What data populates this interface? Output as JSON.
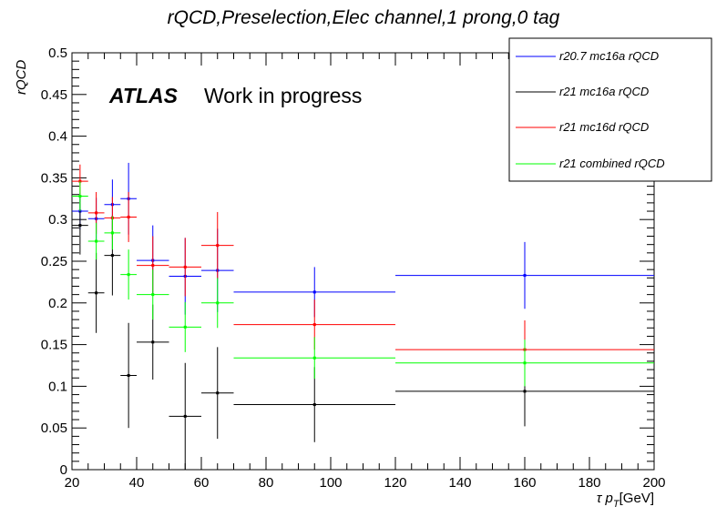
{
  "chart_data": {
    "type": "scatter",
    "title": "rQCD,Preselection,Elec channel,1 prong,0 tag",
    "xlabel": "τ p_T[GeV]",
    "ylabel": "rQCD",
    "xlim": [
      20,
      200
    ],
    "ylim": [
      0,
      0.5
    ],
    "x_ticks": [
      20,
      40,
      60,
      80,
      100,
      120,
      140,
      160,
      180,
      200
    ],
    "y_ticks": [
      0,
      0.05,
      0.1,
      0.15,
      0.2,
      0.25,
      0.3,
      0.35,
      0.4,
      0.45,
      0.5
    ],
    "x_tick_labels": [
      "20",
      "40",
      "60",
      "80",
      "100",
      "120",
      "140",
      "160",
      "180",
      "200"
    ],
    "y_tick_labels": [
      "0",
      "0.05",
      "0.1",
      "0.15",
      "0.2",
      "0.25",
      "0.3",
      "0.35",
      "0.4",
      "0.45",
      "0.5"
    ],
    "grid": false,
    "legend_position": "top-right",
    "annotation": {
      "bold": "ATLAS",
      "text": "Work in progress"
    },
    "bin_edges": [
      20,
      25,
      30,
      35,
      40,
      50,
      60,
      70,
      120,
      200
    ],
    "series": [
      {
        "name": "r20.7 mc16a rQCD",
        "color": "#0000ff",
        "points": [
          {
            "x": 22.5,
            "y": 0.31,
            "xlo": 20,
            "xhi": 25,
            "err": 0.022
          },
          {
            "x": 27.5,
            "y": 0.301,
            "xlo": 25,
            "xhi": 30,
            "err": 0.025
          },
          {
            "x": 32.5,
            "y": 0.318,
            "xlo": 30,
            "xhi": 35,
            "err": 0.03
          },
          {
            "x": 37.5,
            "y": 0.325,
            "xlo": 35,
            "xhi": 40,
            "err": 0.043
          },
          {
            "x": 45,
            "y": 0.251,
            "xlo": 40,
            "xhi": 50,
            "err": 0.042
          },
          {
            "x": 55,
            "y": 0.232,
            "xlo": 50,
            "xhi": 60,
            "err": 0.046
          },
          {
            "x": 65,
            "y": 0.239,
            "xlo": 60,
            "xhi": 70,
            "err": 0.05
          },
          {
            "x": 95,
            "y": 0.213,
            "xlo": 70,
            "xhi": 120,
            "err": 0.03
          },
          {
            "x": 160,
            "y": 0.233,
            "xlo": 120,
            "xhi": 200,
            "err": 0.04
          }
        ]
      },
      {
        "name": "r21 mc16a rQCD",
        "color": "#000000",
        "points": [
          {
            "x": 22.5,
            "y": 0.293,
            "xlo": 20,
            "xhi": 25,
            "err": 0.035
          },
          {
            "x": 27.5,
            "y": 0.212,
            "xlo": 25,
            "xhi": 30,
            "err": 0.048
          },
          {
            "x": 32.5,
            "y": 0.257,
            "xlo": 30,
            "xhi": 35,
            "err": 0.048
          },
          {
            "x": 37.5,
            "y": 0.113,
            "xlo": 35,
            "xhi": 40,
            "err": 0.063
          },
          {
            "x": 45,
            "y": 0.153,
            "xlo": 40,
            "xhi": 50,
            "err": 0.045
          },
          {
            "x": 55,
            "y": 0.064,
            "xlo": 50,
            "xhi": 60,
            "err": 0.064
          },
          {
            "x": 65,
            "y": 0.092,
            "xlo": 60,
            "xhi": 70,
            "err": 0.055
          },
          {
            "x": 95,
            "y": 0.078,
            "xlo": 70,
            "xhi": 120,
            "err": 0.045
          },
          {
            "x": 160,
            "y": 0.094,
            "xlo": 120,
            "xhi": 200,
            "err": 0.042
          }
        ]
      },
      {
        "name": "r21 mc16d rQCD",
        "color": "#ff0000",
        "points": [
          {
            "x": 22.5,
            "y": 0.346,
            "xlo": 20,
            "xhi": 25,
            "err": 0.02
          },
          {
            "x": 27.5,
            "y": 0.308,
            "xlo": 25,
            "xhi": 30,
            "err": 0.025
          },
          {
            "x": 32.5,
            "y": 0.302,
            "xlo": 30,
            "xhi": 35,
            "err": 0.025
          },
          {
            "x": 37.5,
            "y": 0.303,
            "xlo": 35,
            "xhi": 40,
            "err": 0.03
          },
          {
            "x": 45,
            "y": 0.245,
            "xlo": 40,
            "xhi": 50,
            "err": 0.035
          },
          {
            "x": 55,
            "y": 0.243,
            "xlo": 50,
            "xhi": 60,
            "err": 0.035
          },
          {
            "x": 65,
            "y": 0.269,
            "xlo": 60,
            "xhi": 70,
            "err": 0.04
          },
          {
            "x": 95,
            "y": 0.174,
            "xlo": 70,
            "xhi": 120,
            "err": 0.03
          },
          {
            "x": 160,
            "y": 0.144,
            "xlo": 120,
            "xhi": 200,
            "err": 0.035
          }
        ]
      },
      {
        "name": "r21 combined rQCD",
        "color": "#00ff00",
        "points": [
          {
            "x": 22.5,
            "y": 0.328,
            "xlo": 20,
            "xhi": 25,
            "err": 0.018
          },
          {
            "x": 27.5,
            "y": 0.274,
            "xlo": 25,
            "xhi": 30,
            "err": 0.022
          },
          {
            "x": 32.5,
            "y": 0.284,
            "xlo": 30,
            "xhi": 35,
            "err": 0.02
          },
          {
            "x": 37.5,
            "y": 0.234,
            "xlo": 35,
            "xhi": 40,
            "err": 0.03
          },
          {
            "x": 45,
            "y": 0.21,
            "xlo": 40,
            "xhi": 50,
            "err": 0.03
          },
          {
            "x": 55,
            "y": 0.171,
            "xlo": 50,
            "xhi": 60,
            "err": 0.03
          },
          {
            "x": 65,
            "y": 0.2,
            "xlo": 60,
            "xhi": 70,
            "err": 0.03
          },
          {
            "x": 95,
            "y": 0.134,
            "xlo": 70,
            "xhi": 120,
            "err": 0.025
          },
          {
            "x": 160,
            "y": 0.128,
            "xlo": 120,
            "xhi": 200,
            "err": 0.028
          }
        ]
      }
    ]
  }
}
